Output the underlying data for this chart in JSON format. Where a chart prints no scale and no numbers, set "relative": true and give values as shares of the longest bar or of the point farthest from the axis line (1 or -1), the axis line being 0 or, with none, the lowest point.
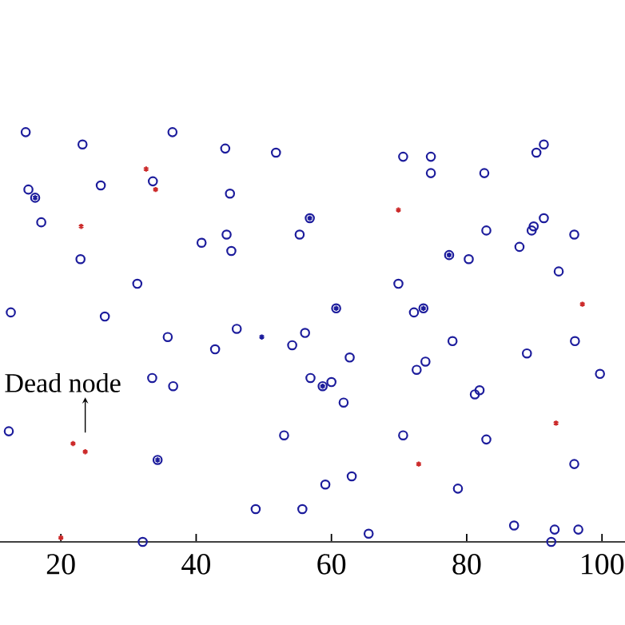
{
  "chart_data": {
    "type": "scatter",
    "relative": true,
    "tick_labels": "x",
    "xlim": [
      11,
      103.4
    ],
    "xticks": [
      20,
      40,
      60,
      80,
      100
    ],
    "series": [
      {
        "color": "#1c1c9c",
        "marker": "circle",
        "x": [
          14.8,
          23.2,
          36.5,
          44.3,
          51.8,
          33.6,
          25.9,
          15.2,
          45.0,
          17.1,
          55.3,
          44.5,
          40.8,
          45.2,
          22.9,
          31.3,
          12.6,
          26.5,
          46.0,
          35.8,
          42.8,
          56.1,
          54.2,
          70.6,
          74.7,
          74.7,
          82.6,
          90.3,
          91.4,
          91.4,
          89.6,
          89.9,
          82.9,
          95.9,
          87.8,
          80.3,
          93.6,
          69.9,
          72.2,
          77.9,
          88.9,
          96.0,
          62.7,
          73.9,
          33.5,
          36.6,
          12.3,
          53.0,
          48.8,
          55.7,
          32.1,
          56.9,
          60.0,
          61.8,
          72.6,
          81.9,
          81.2,
          99.7,
          70.6,
          82.9,
          95.9,
          63.0,
          59.1,
          78.7,
          87.0,
          93.0,
          96.5,
          65.5,
          92.5,
          16.2,
          56.8,
          77.4,
          60.7,
          73.6,
          34.3,
          58.7
        ],
        "values": [
          1.0,
          0.97,
          1.0,
          0.96,
          0.95,
          0.88,
          0.87,
          0.86,
          0.85,
          0.78,
          0.75,
          0.75,
          0.73,
          0.71,
          0.69,
          0.63,
          0.56,
          0.55,
          0.52,
          0.5,
          0.47,
          0.51,
          0.48,
          0.94,
          0.94,
          0.9,
          0.9,
          0.95,
          0.97,
          0.79,
          0.76,
          0.77,
          0.76,
          0.75,
          0.72,
          0.69,
          0.66,
          0.63,
          0.56,
          0.49,
          0.46,
          0.49,
          0.45,
          0.44,
          0.4,
          0.38,
          0.27,
          0.26,
          0.08,
          0.08,
          0.0,
          0.4,
          0.39,
          0.34,
          0.42,
          0.37,
          0.36,
          0.41,
          0.26,
          0.25,
          0.19,
          0.16,
          0.14,
          0.13,
          0.04,
          0.03,
          0.03,
          0.02,
          0.0,
          0.84,
          0.79,
          0.7,
          0.57,
          0.57,
          0.2,
          0.38
        ]
      },
      {
        "color": "#1c1c9c",
        "marker": "cross",
        "x": [
          16.2,
          56.8,
          77.4,
          60.7,
          73.6,
          34.3,
          58.7,
          49.7
        ],
        "values": [
          0.84,
          0.79,
          0.7,
          0.57,
          0.57,
          0.2,
          0.38,
          0.5
        ]
      },
      {
        "color": "#cc2a2a",
        "marker": "cross",
        "x": [
          32.6,
          34.0,
          23.0,
          69.9,
          97.1,
          21.8,
          23.6,
          20.0,
          93.2,
          72.9
        ],
        "values": [
          0.91,
          0.86,
          0.77,
          0.81,
          0.58,
          0.24,
          0.22,
          0.01,
          0.29,
          0.19
        ]
      }
    ],
    "annotations": [
      {
        "text": "Dead node",
        "x": 23.6,
        "y": 0.22
      }
    ]
  }
}
